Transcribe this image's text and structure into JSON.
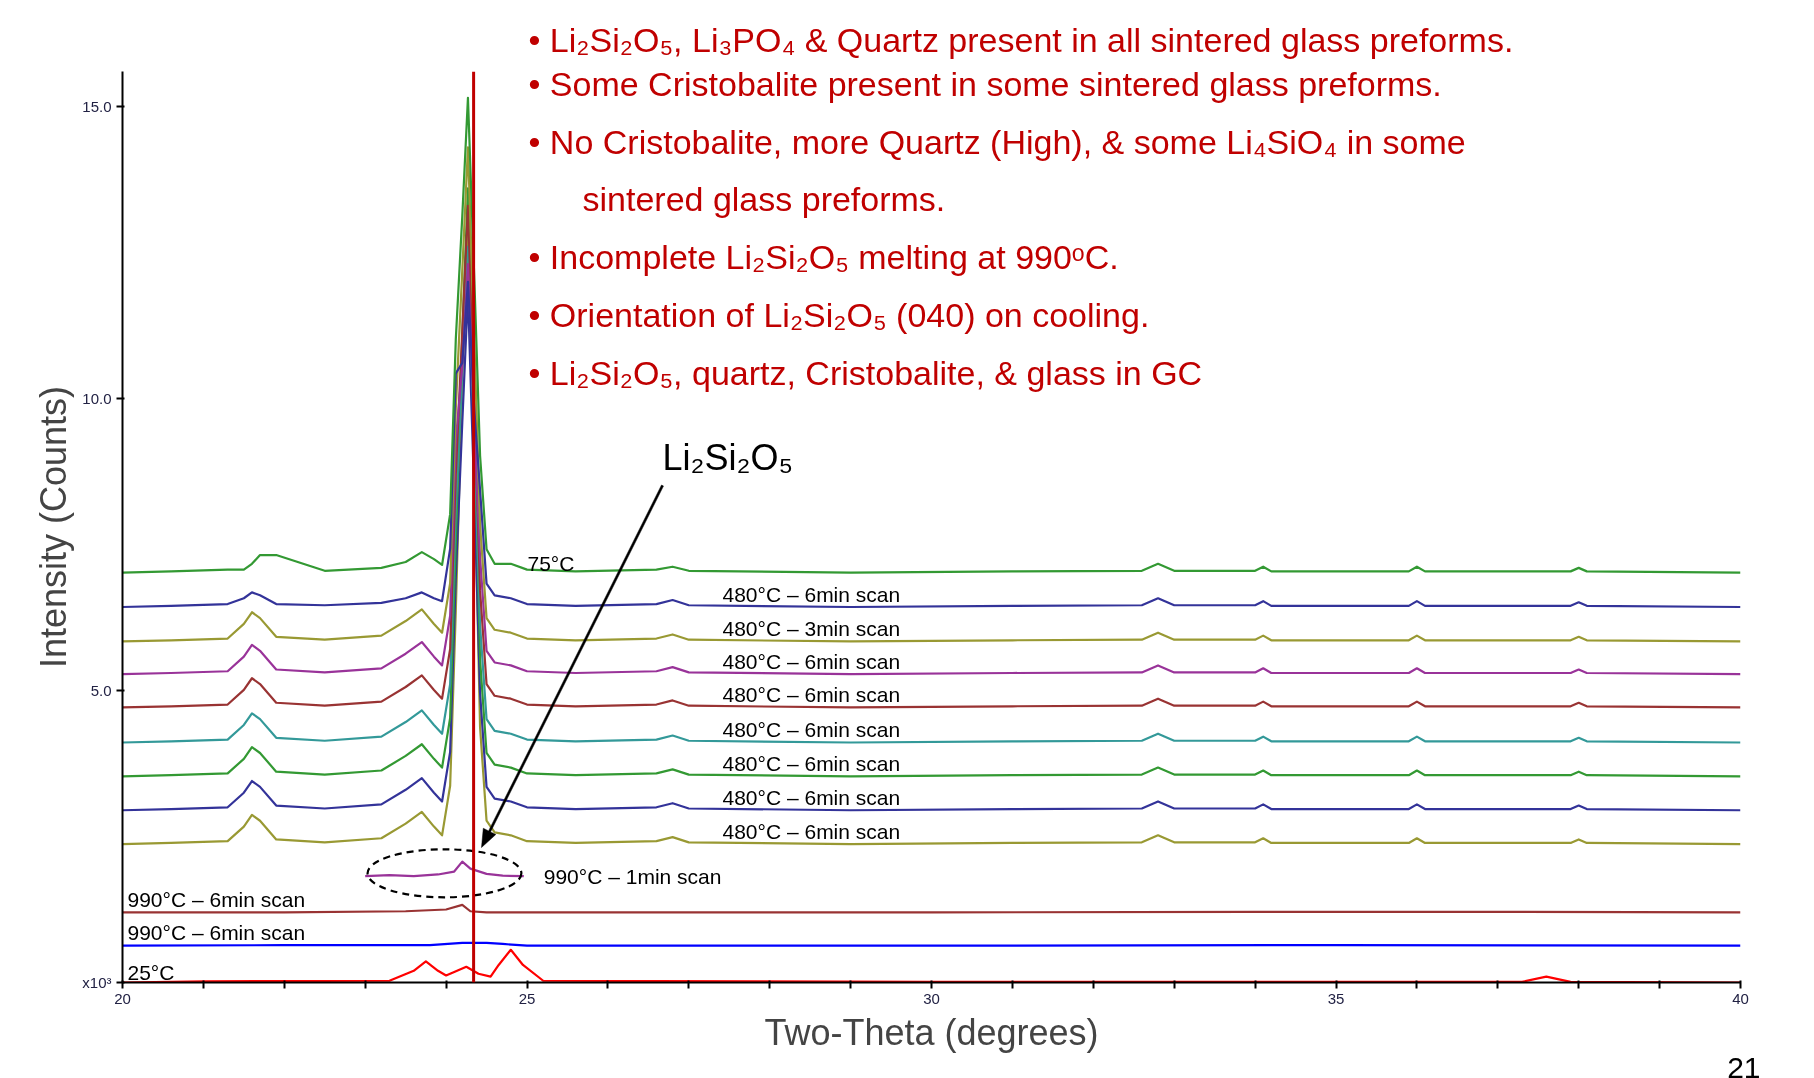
{
  "chart_data": {
    "type": "line",
    "xlabel": "Two-Theta (degrees)",
    "ylabel": "Intensity (Counts)",
    "xlim": [
      20,
      40
    ],
    "ylim": [
      0,
      15.6
    ],
    "xticks": [
      20,
      {
        "value": 21,
        "label": null
      },
      {
        "value": 22,
        "label": null
      },
      {
        "value": 23,
        "label": null
      },
      {
        "value": 24,
        "label": null
      },
      25,
      {
        "value": 26,
        "label": null
      },
      {
        "value": 27,
        "label": null
      },
      {
        "value": 28,
        "label": null
      },
      {
        "value": 29,
        "label": null
      },
      30,
      {
        "value": 31,
        "label": null
      },
      {
        "value": 32,
        "label": null
      },
      {
        "value": 33,
        "label": null
      },
      {
        "value": 34,
        "label": null
      },
      35,
      {
        "value": 36,
        "label": null
      },
      {
        "value": 37,
        "label": null
      },
      {
        "value": 38,
        "label": null
      },
      {
        "value": 39,
        "label": null
      },
      40
    ],
    "yticks": [
      {
        "value": 0,
        "label": "x10³"
      },
      {
        "value": 5,
        "label": "5.0"
      },
      {
        "value": 10,
        "label": "10.0"
      },
      {
        "value": 15,
        "label": "15.0"
      }
    ],
    "x": [
      20,
      20.6,
      21.3,
      21.5,
      21.6,
      21.7,
      21.9,
      22.5,
      23.2,
      23.5,
      23.7,
      23.85,
      23.95,
      24.05,
      24.12,
      24.2,
      24.27,
      24.35,
      24.42,
      24.5,
      24.6,
      24.8,
      25.0,
      25.6,
      26.6,
      26.8,
      27.0,
      29.0,
      31.0,
      32.6,
      32.8,
      33.0,
      34.0,
      34.1,
      34.2,
      35.9,
      36.0,
      36.1,
      37.9,
      38.0,
      38.1,
      40
    ],
    "series": [
      {
        "name": "480°C – 6min scan",
        "color": "#999933",
        "values": [
          2.37,
          2.39,
          2.42,
          2.67,
          2.87,
          2.77,
          2.45,
          2.4,
          2.47,
          2.72,
          2.92,
          2.67,
          2.52,
          3.37,
          6.37,
          10.34,
          13.0,
          8.75,
          4.37,
          2.77,
          2.57,
          2.52,
          2.42,
          2.39,
          2.42,
          2.49,
          2.4,
          2.37,
          2.39,
          2.4,
          2.52,
          2.4,
          2.4,
          2.47,
          2.39,
          2.39,
          2.47,
          2.39,
          2.39,
          2.45,
          2.39,
          2.37
        ]
      },
      {
        "name": "480°C – 6min scan",
        "color": "#333399",
        "values": [
          2.95,
          2.97,
          3.0,
          3.25,
          3.45,
          3.35,
          3.03,
          2.98,
          3.05,
          3.3,
          3.5,
          3.25,
          3.1,
          3.95,
          6.95,
          9.59,
          11.8,
          8.26,
          4.95,
          3.35,
          3.15,
          3.1,
          3.0,
          2.97,
          3.0,
          3.07,
          2.98,
          2.95,
          2.97,
          2.98,
          3.1,
          2.98,
          2.98,
          3.05,
          2.97,
          2.97,
          3.05,
          2.97,
          2.97,
          3.03,
          2.97,
          2.95
        ]
      },
      {
        "name": "480°C – 6min scan",
        "color": "#339933",
        "values": [
          3.53,
          3.55,
          3.58,
          3.83,
          4.03,
          3.93,
          3.61,
          3.56,
          3.63,
          3.88,
          4.08,
          3.83,
          3.68,
          4.53,
          7.53,
          11.08,
          13.6,
          9.57,
          5.53,
          3.93,
          3.73,
          3.68,
          3.58,
          3.55,
          3.58,
          3.65,
          3.56,
          3.53,
          3.55,
          3.56,
          3.68,
          3.56,
          3.56,
          3.63,
          3.55,
          3.55,
          3.63,
          3.55,
          3.55,
          3.61,
          3.55,
          3.53
        ]
      },
      {
        "name": "480°C – 6min scan",
        "color": "#339999",
        "values": [
          4.11,
          4.13,
          4.16,
          4.41,
          4.61,
          4.51,
          4.19,
          4.14,
          4.21,
          4.46,
          4.66,
          4.41,
          4.26,
          5.11,
          8.11,
          10.48,
          12.6,
          9.2,
          6.11,
          4.51,
          4.31,
          4.26,
          4.16,
          4.13,
          4.16,
          4.23,
          4.14,
          4.11,
          4.13,
          4.14,
          4.26,
          4.14,
          4.14,
          4.21,
          4.13,
          4.13,
          4.21,
          4.13,
          4.13,
          4.19,
          4.13,
          4.11
        ]
      },
      {
        "name": "480°C – 6min scan",
        "color": "#993333",
        "values": [
          4.71,
          4.73,
          4.76,
          5.01,
          5.21,
          5.11,
          4.79,
          4.74,
          4.81,
          5.06,
          5.26,
          5.01,
          4.86,
          5.71,
          8.71,
          11.15,
          13.3,
          9.86,
          6.71,
          5.11,
          4.91,
          4.86,
          4.76,
          4.73,
          4.76,
          4.83,
          4.74,
          4.71,
          4.73,
          4.74,
          4.86,
          4.74,
          4.74,
          4.81,
          4.73,
          4.73,
          4.81,
          4.73,
          4.73,
          4.79,
          4.73,
          4.71
        ]
      },
      {
        "name": "480°C – 6min scan",
        "color": "#993399",
        "values": [
          5.28,
          5.3,
          5.33,
          5.58,
          5.78,
          5.68,
          5.36,
          5.31,
          5.38,
          5.63,
          5.83,
          5.58,
          5.43,
          6.28,
          9.28,
          10.55,
          12.3,
          9.49,
          7.28,
          5.68,
          5.48,
          5.43,
          5.33,
          5.3,
          5.33,
          5.4,
          5.31,
          5.28,
          5.3,
          5.31,
          5.43,
          5.31,
          5.31,
          5.38,
          5.3,
          5.3,
          5.38,
          5.3,
          5.3,
          5.36,
          5.3,
          5.28
        ]
      },
      {
        "name": "480°C – 3min scan",
        "color": "#999933",
        "values": [
          5.84,
          5.86,
          5.89,
          6.14,
          6.34,
          6.24,
          5.92,
          5.87,
          5.94,
          6.19,
          6.39,
          6.14,
          5.99,
          6.84,
          9.84,
          12.19,
          14.3,
          10.92,
          7.84,
          6.24,
          6.04,
          5.99,
          5.89,
          5.86,
          5.89,
          5.96,
          5.87,
          5.84,
          5.86,
          5.87,
          5.99,
          5.87,
          5.87,
          5.94,
          5.86,
          5.86,
          5.94,
          5.86,
          5.86,
          5.92,
          5.86,
          5.84
        ]
      },
      {
        "name": "480°C – 6min scan",
        "color": "#333399",
        "values": [
          6.43,
          6.45,
          6.48,
          6.58,
          6.68,
          6.63,
          6.48,
          6.46,
          6.5,
          6.58,
          6.68,
          6.58,
          6.53,
          7.43,
          10.43,
          10.61,
          12.0,
          9.77,
          8.43,
          6.83,
          6.63,
          6.58,
          6.48,
          6.45,
          6.48,
          6.55,
          6.46,
          6.43,
          6.45,
          6.46,
          6.58,
          6.46,
          6.46,
          6.53,
          6.45,
          6.45,
          6.53,
          6.45,
          6.45,
          6.51,
          6.45,
          6.43
        ]
      },
      {
        "name": "75°C",
        "color": "#339933",
        "values": [
          7.02,
          7.04,
          7.07,
          7.07,
          7.17,
          7.32,
          7.32,
          7.05,
          7.1,
          7.2,
          7.37,
          7.25,
          7.15,
          8.02,
          11.02,
          13.12,
          15.15,
          12.0,
          9.02,
          7.42,
          7.17,
          7.17,
          7.07,
          7.04,
          7.07,
          7.12,
          7.05,
          7.02,
          7.04,
          7.05,
          7.17,
          7.05,
          7.05,
          7.12,
          7.04,
          7.04,
          7.12,
          7.04,
          7.04,
          7.1,
          7.04,
          7.02
        ]
      },
      {
        "name": "990°C – 1min scan",
        "color": "#993399",
        "x": [
          23.0,
          23.3,
          23.6,
          23.9,
          24.1,
          24.2,
          24.3,
          24.5,
          24.7,
          24.96
        ],
        "values": [
          1.82,
          1.84,
          1.82,
          1.85,
          1.9,
          2.07,
          1.95,
          1.86,
          1.83,
          1.82
        ]
      },
      {
        "name": "990°C – 6min scan",
        "color": "#993333",
        "x": [
          20,
          22,
          23.5,
          24.0,
          24.2,
          24.3,
          24.5,
          26,
          30,
          34,
          37,
          40
        ],
        "values": [
          1.2,
          1.2,
          1.22,
          1.25,
          1.33,
          1.22,
          1.2,
          1.2,
          1.2,
          1.21,
          1.21,
          1.2
        ]
      },
      {
        "name": "990°C – 6min scan",
        "color": "#0000ff",
        "x": [
          20,
          22,
          23.8,
          24.2,
          24.5,
          24.7,
          25,
          30,
          35,
          40
        ],
        "values": [
          0.63,
          0.64,
          0.64,
          0.68,
          0.68,
          0.66,
          0.63,
          0.63,
          0.64,
          0.63
        ]
      },
      {
        "name": "25°C",
        "color": "#ff0000",
        "x": [
          20,
          21,
          23.3,
          23.6,
          23.75,
          23.9,
          24.0,
          24.25,
          24.4,
          24.55,
          24.65,
          24.8,
          24.95,
          25.2,
          30,
          37.3,
          37.6,
          37.9,
          40
        ],
        "values": [
          0.0,
          0.02,
          0.03,
          0.2,
          0.36,
          0.2,
          0.12,
          0.27,
          0.15,
          0.1,
          0.3,
          0.56,
          0.3,
          0.03,
          0.01,
          0.01,
          0.1,
          0.01,
          0.0
        ]
      }
    ],
    "ref_lines": [
      {
        "axis": "x",
        "value": 24.34,
        "color": "#c00000"
      }
    ],
    "annotations": [
      "•   Li₂Si₂O₅, Li₃PO₄ & Quartz present in all sintered glass preforms.",
      "•   Some Cristobalite present in some sintered glass preforms.",
      "•   No Cristobalite, more Quartz (High), & some Li₄SiO₄ in some sintered glass preforms.",
      "•   Incomplete Li₂Si₂O₅ melting at 990ᵒC.",
      "•   Orientation of Li₂Si₂O₅ (040) on cooling.",
      "•   Li₂Si₂O₅, quartz, Cristobalite, & glass in GC",
      "21",
      "Li₂Si₂O₅"
    ]
  }
}
